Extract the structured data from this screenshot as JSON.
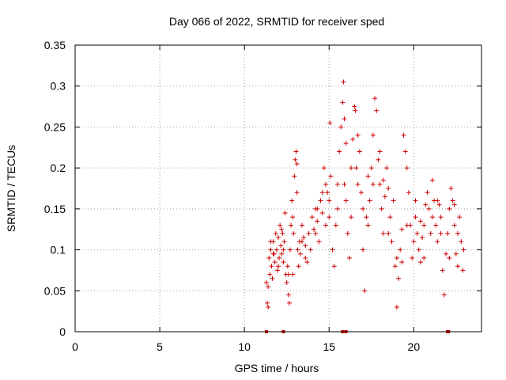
{
  "chart_data": {
    "type": "scatter",
    "title": "Day 066 of 2022, SRMTID for receiver sped",
    "xlabel": "GPS time / hours",
    "ylabel": "SRMTID / TECUs",
    "xlim": [
      0,
      24
    ],
    "ylim": [
      0,
      0.35
    ],
    "xticks": [
      0,
      5,
      10,
      15,
      20
    ],
    "xtick_labels": [
      "0",
      "5",
      "10",
      "15",
      "20"
    ],
    "yticks": [
      0,
      0.05,
      0.1,
      0.15,
      0.2,
      0.25,
      0.3,
      0.35
    ],
    "ytick_labels": [
      "0",
      "0.05",
      "0.1",
      "0.15",
      "0.2",
      "0.25",
      "0.3",
      "0.35"
    ],
    "grid": true,
    "marker": "+",
    "color": "#cc0000",
    "series": [
      {
        "name": "SRMTID",
        "points": [
          [
            11.3,
            0.06
          ],
          [
            11.35,
            0.035
          ],
          [
            11.4,
            0.03
          ],
          [
            11.45,
            0.09
          ],
          [
            11.5,
            0.07
          ],
          [
            11.55,
            0.1
          ],
          [
            11.6,
            0.08
          ],
          [
            11.65,
            0.065
          ],
          [
            11.7,
            0.11
          ],
          [
            11.75,
            0.095
          ],
          [
            11.8,
            0.085
          ],
          [
            11.85,
            0.12
          ],
          [
            11.9,
            0.1
          ],
          [
            11.95,
            0.075
          ],
          [
            12.0,
            0.115
          ],
          [
            12.05,
            0.09
          ],
          [
            12.1,
            0.13
          ],
          [
            12.15,
            0.105
          ],
          [
            12.2,
            0.095
          ],
          [
            12.25,
            0.12
          ],
          [
            12.3,
            0.085
          ],
          [
            12.35,
            0.11
          ],
          [
            12.4,
            0.145
          ],
          [
            12.45,
            0.07
          ],
          [
            12.5,
            0.06
          ],
          [
            12.55,
            0.08
          ],
          [
            12.6,
            0.045
          ],
          [
            12.65,
            0.035
          ],
          [
            12.7,
            0.1
          ],
          [
            12.75,
            0.13
          ],
          [
            12.8,
            0.16
          ],
          [
            12.85,
            0.14
          ],
          [
            12.9,
            0.12
          ],
          [
            12.95,
            0.19
          ],
          [
            13.0,
            0.21
          ],
          [
            13.05,
            0.22
          ],
          [
            13.1,
            0.17
          ],
          [
            13.15,
            0.1
          ],
          [
            13.2,
            0.08
          ],
          [
            13.25,
            0.11
          ],
          [
            13.3,
            0.095
          ],
          [
            13.4,
            0.13
          ],
          [
            13.5,
            0.115
          ],
          [
            13.6,
            0.09
          ],
          [
            13.7,
            0.085
          ],
          [
            13.8,
            0.12
          ],
          [
            13.9,
            0.1
          ],
          [
            14.0,
            0.14
          ],
          [
            14.1,
            0.125
          ],
          [
            14.2,
            0.15
          ],
          [
            14.3,
            0.135
          ],
          [
            14.4,
            0.11
          ],
          [
            14.5,
            0.16
          ],
          [
            14.6,
            0.145
          ],
          [
            14.7,
            0.2
          ],
          [
            14.8,
            0.18
          ],
          [
            14.9,
            0.17
          ],
          [
            15.0,
            0.14
          ],
          [
            15.05,
            0.255
          ],
          [
            15.1,
            0.19
          ],
          [
            15.2,
            0.1
          ],
          [
            15.3,
            0.08
          ],
          [
            15.4,
            0.13
          ],
          [
            15.5,
            0.15
          ],
          [
            15.6,
            0.22
          ],
          [
            15.7,
            0.25
          ],
          [
            15.8,
            0.28
          ],
          [
            15.85,
            0.305
          ],
          [
            15.9,
            0.26
          ],
          [
            16.0,
            0.16
          ],
          [
            16.1,
            0.12
          ],
          [
            16.2,
            0.09
          ],
          [
            16.3,
            0.2
          ],
          [
            16.4,
            0.235
          ],
          [
            16.5,
            0.275
          ],
          [
            16.55,
            0.27
          ],
          [
            16.6,
            0.2
          ],
          [
            16.7,
            0.18
          ],
          [
            16.8,
            0.22
          ],
          [
            16.9,
            0.17
          ],
          [
            17.0,
            0.1
          ],
          [
            17.1,
            0.05
          ],
          [
            17.2,
            0.14
          ],
          [
            17.3,
            0.13
          ],
          [
            17.4,
            0.16
          ],
          [
            17.5,
            0.2
          ],
          [
            17.6,
            0.24
          ],
          [
            17.7,
            0.285
          ],
          [
            17.8,
            0.27
          ],
          [
            17.9,
            0.21
          ],
          [
            18.0,
            0.18
          ],
          [
            18.1,
            0.15
          ],
          [
            18.2,
            0.12
          ],
          [
            18.3,
            0.165
          ],
          [
            18.4,
            0.2
          ],
          [
            18.5,
            0.175
          ],
          [
            18.6,
            0.14
          ],
          [
            18.7,
            0.11
          ],
          [
            18.8,
            0.16
          ],
          [
            18.9,
            0.08
          ],
          [
            19.0,
            0.03
          ],
          [
            19.1,
            0.065
          ],
          [
            19.2,
            0.1
          ],
          [
            19.3,
            0.125
          ],
          [
            19.4,
            0.24
          ],
          [
            19.5,
            0.22
          ],
          [
            19.6,
            0.2
          ],
          [
            19.7,
            0.17
          ],
          [
            19.8,
            0.13
          ],
          [
            19.9,
            0.09
          ],
          [
            20.0,
            0.11
          ],
          [
            20.1,
            0.14
          ],
          [
            20.2,
            0.12
          ],
          [
            20.3,
            0.1
          ],
          [
            20.4,
            0.085
          ],
          [
            20.5,
            0.115
          ],
          [
            20.6,
            0.13
          ],
          [
            20.7,
            0.155
          ],
          [
            20.8,
            0.17
          ],
          [
            20.9,
            0.15
          ],
          [
            21.0,
            0.12
          ],
          [
            21.1,
            0.185
          ],
          [
            21.2,
            0.16
          ],
          [
            21.3,
            0.13
          ],
          [
            21.4,
            0.11
          ],
          [
            21.5,
            0.155
          ],
          [
            21.6,
            0.14
          ],
          [
            21.7,
            0.075
          ],
          [
            21.8,
            0.045
          ],
          [
            21.9,
            0.095
          ],
          [
            22.0,
            0.12
          ],
          [
            22.1,
            0.15
          ],
          [
            22.2,
            0.175
          ],
          [
            22.3,
            0.16
          ],
          [
            22.4,
            0.13
          ],
          [
            22.5,
            0.095
          ],
          [
            22.6,
            0.12
          ],
          [
            22.7,
            0.14
          ],
          [
            22.8,
            0.11
          ],
          [
            22.9,
            0.075
          ],
          [
            22.95,
            0.1
          ],
          [
            11.4,
            0.055
          ],
          [
            11.7,
            0.095
          ],
          [
            12.0,
            0.08
          ],
          [
            12.3,
            0.1
          ],
          [
            12.6,
            0.07
          ],
          [
            13.1,
            0.205
          ],
          [
            13.6,
            0.105
          ],
          [
            14.2,
            0.12
          ],
          [
            14.6,
            0.17
          ],
          [
            15.0,
            0.16
          ],
          [
            15.5,
            0.18
          ],
          [
            15.9,
            0.18
          ],
          [
            16.3,
            0.14
          ],
          [
            16.7,
            0.24
          ],
          [
            17.3,
            0.19
          ],
          [
            17.6,
            0.18
          ],
          [
            18.0,
            0.22
          ],
          [
            18.5,
            0.12
          ],
          [
            19.0,
            0.09
          ],
          [
            19.6,
            0.13
          ],
          [
            20.1,
            0.16
          ],
          [
            20.6,
            0.09
          ],
          [
            21.1,
            0.14
          ],
          [
            21.6,
            0.12
          ],
          [
            22.1,
            0.09
          ],
          [
            22.6,
            0.08
          ],
          [
            12.2,
            0.125
          ],
          [
            13.4,
            0.11
          ],
          [
            14.8,
            0.13
          ],
          [
            16.0,
            0.23
          ],
          [
            17.0,
            0.15
          ],
          [
            18.2,
            0.185
          ],
          [
            19.3,
            0.085
          ],
          [
            20.4,
            0.135
          ],
          [
            21.4,
            0.16
          ],
          [
            22.4,
            0.155
          ],
          [
            11.55,
            0.11
          ],
          [
            12.85,
            0.07
          ],
          [
            14.3,
            0.15
          ]
        ]
      }
    ],
    "zero_markers_x": [
      11.3,
      12.3,
      15.8,
      16.0,
      22.0,
      22.05
    ]
  }
}
